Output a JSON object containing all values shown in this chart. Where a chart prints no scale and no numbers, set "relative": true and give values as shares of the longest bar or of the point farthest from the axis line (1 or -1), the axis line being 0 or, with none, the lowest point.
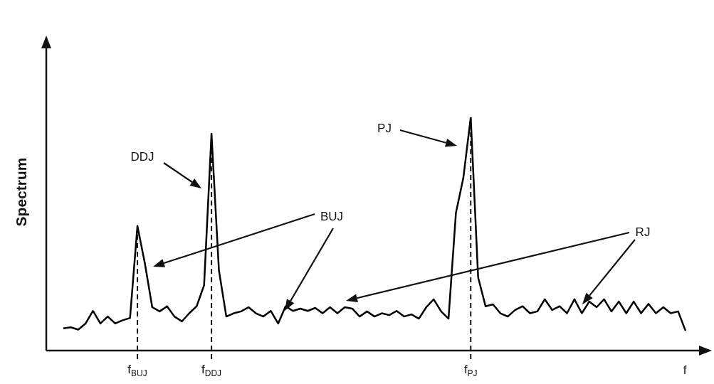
{
  "chart_data": {
    "type": "line",
    "relative": true,
    "ylabel": "Spectrum",
    "xlabel": "f",
    "categories": [
      null,
      null,
      null,
      null,
      null,
      null,
      null,
      null,
      null,
      null,
      "f$_{BUJ}$",
      null,
      null,
      null,
      null,
      null,
      null,
      null,
      null,
      null,
      "f$_{DDJ}$",
      null,
      null,
      null,
      null,
      null,
      null,
      null,
      null,
      null,
      null,
      null,
      null,
      null,
      null,
      null,
      null,
      null,
      null,
      null,
      null,
      null,
      null,
      null,
      null,
      null,
      null,
      null,
      null,
      null,
      null,
      null,
      null,
      null,
      null,
      "f$_{PJ}$",
      null,
      null,
      null,
      null,
      null,
      null,
      null,
      null,
      null,
      null,
      null,
      null,
      null,
      null,
      null,
      null,
      null,
      null,
      null,
      null,
      null,
      null,
      null,
      null,
      null,
      null,
      null,
      null,
      null
    ],
    "series": [
      {
        "color": "#000000",
        "values": [
          0.095,
          0.1,
          0.09,
          0.116,
          0.17,
          0.116,
          0.146,
          0.116,
          0.13,
          0.14,
          0.534,
          0.375,
          0.186,
          0.168,
          0.19,
          0.146,
          0.125,
          0.16,
          0.19,
          0.28,
          0.93,
          0.345,
          0.146,
          0.16,
          0.168,
          0.186,
          0.16,
          0.146,
          0.17,
          0.116,
          0.19,
          0.17,
          0.18,
          0.17,
          0.183,
          0.16,
          0.186,
          0.16,
          0.186,
          0.18,
          0.146,
          0.168,
          0.146,
          0.16,
          0.152,
          0.17,
          0.146,
          0.155,
          0.137,
          0.186,
          0.22,
          0.168,
          0.137,
          0.59,
          0.74,
          1.0,
          0.314,
          0.19,
          0.198,
          0.16,
          0.146,
          0.174,
          0.19,
          0.16,
          0.168,
          0.22,
          0.174,
          0.19,
          0.16,
          0.22,
          0.16,
          0.21,
          0.186,
          0.22,
          0.168,
          0.21,
          0.16,
          0.21,
          0.16,
          0.2,
          0.16,
          0.186,
          0.16,
          0.168,
          0.085
        ]
      }
    ],
    "marker": "none",
    "line_style": "solid",
    "legend": false,
    "ref_lines": [
      {
        "axis": "x",
        "value": "f$_{BUJ}$",
        "line_style": "dashed"
      },
      {
        "axis": "x",
        "value": "f$_{DDJ}$",
        "line_style": "dashed"
      },
      {
        "axis": "x",
        "value": "f$_{PJ}$",
        "line_style": "dashed"
      }
    ],
    "annotations": [
      "DDJ",
      "PJ",
      "BUJ",
      "RJ"
    ]
  }
}
